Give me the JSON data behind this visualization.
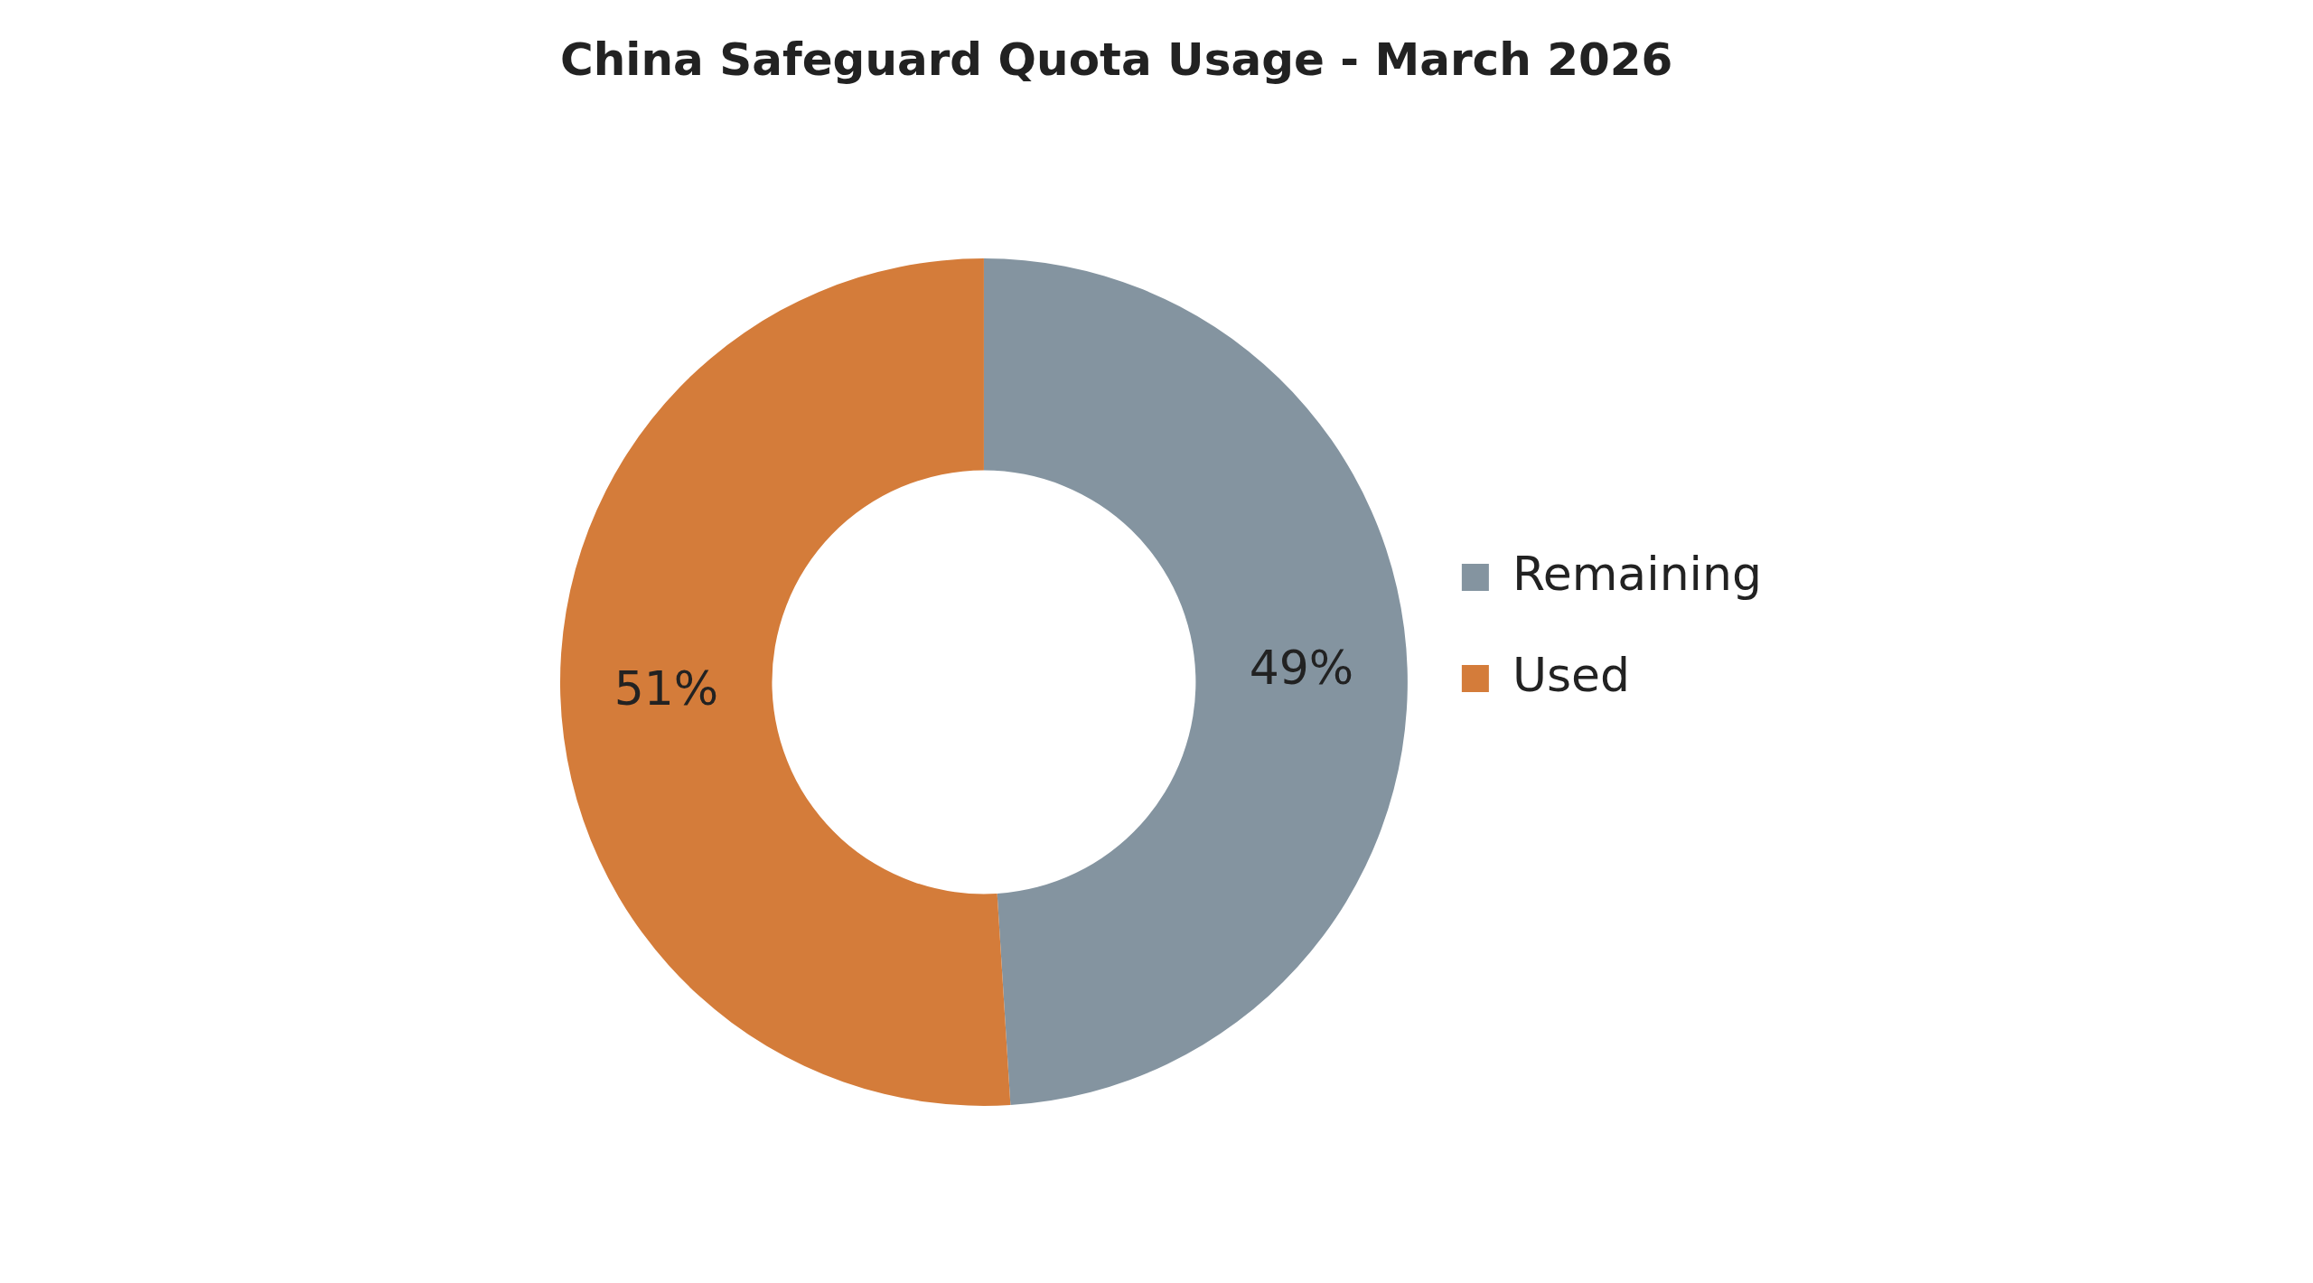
{
  "chart_data": {
    "type": "donut",
    "title": "China Safeguard Quota Usage - March 2026",
    "categories": [
      "Remaining",
      "Used"
    ],
    "values": [
      49,
      51
    ],
    "colors": [
      "#8494a0",
      "#d47c3a"
    ],
    "value_labels": [
      "49%",
      "51%"
    ],
    "legend": "right"
  }
}
